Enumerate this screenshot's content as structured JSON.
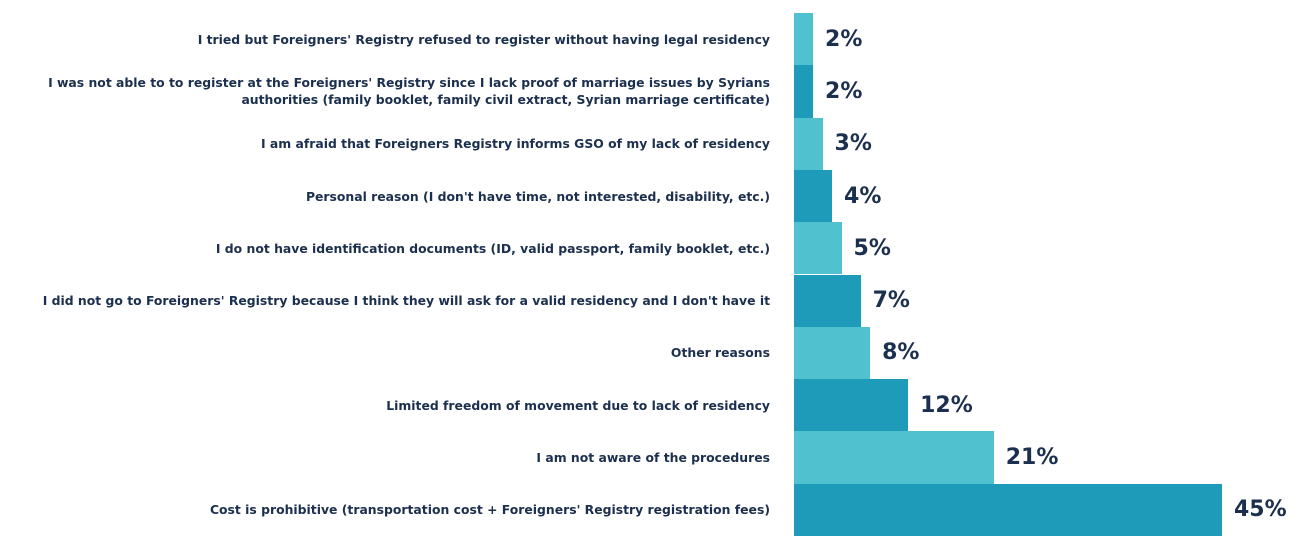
{
  "chart_data": {
    "type": "barh",
    "categories": [
      "I tried but Foreigners' Registry refused to register without having legal residency",
      "I was not able to to register at the Foreigners' Registry since I lack proof of marriage issues by Syrians authorities (family booklet, family civil extract, Syrian marriage certificate)",
      "I am afraid that Foreigners Registry informs GSO of my lack of residency",
      "Personal reason (I don't have time, not interested, disability, etc.)",
      "I do not have identification documents (ID, valid passport, family booklet, etc.)",
      "I did not go to Foreigners' Registry because I think they will ask for a valid residency and I don't have it",
      "Other reasons",
      "Limited freedom of movement due to lack of residency",
      "I am not aware of the procedures",
      "Cost is prohibitive (transportation cost + Foreigners' Registry registration fees)"
    ],
    "values": [
      2,
      2,
      3,
      4,
      5,
      7,
      8,
      12,
      21,
      45
    ],
    "value_labels": [
      "2%",
      "2%",
      "3%",
      "4%",
      "5%",
      "7%",
      "8%",
      "12%",
      "21%",
      "45%"
    ],
    "colors": [
      "#4fc1cf",
      "#1e9bb9",
      "#4fc1cf",
      "#1e9bb9",
      "#4fc1cf",
      "#1e9bb9",
      "#4fc1cf",
      "#1e9bb9",
      "#4fc1cf",
      "#1e9bb9"
    ]
  }
}
